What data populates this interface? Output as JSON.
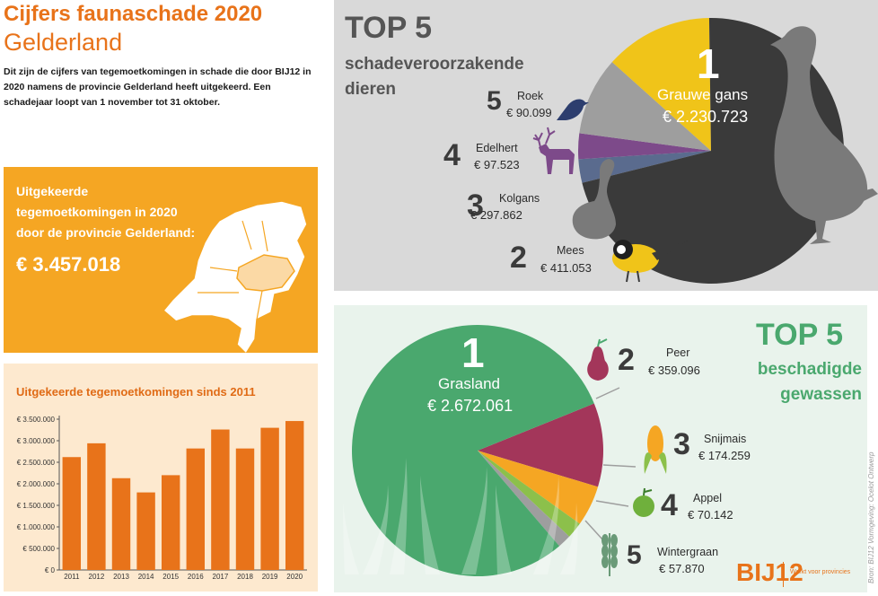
{
  "header": {
    "title_line1": "Cijfers faunaschade 2020",
    "title_line2": "Gelderland",
    "intro": "Dit zijn de cijfers van tegemoetkomingen in schade die door BIJ12 in 2020 namens de provincie Gelderland heeft uitgekeerd. Een schadejaar loopt van 1 november tot 31 oktober."
  },
  "summary": {
    "text": "Uitgekeerde tegemoetkomingen in 2020 door de provincie Gelderland:",
    "amount": "€ 3.457.018"
  },
  "colors": {
    "orange": "#f5a623",
    "orange_dark": "#e8731a",
    "bar": "#e8731a",
    "green": "#4aa86e"
  },
  "chart_data": [
    {
      "type": "bar",
      "title": "Uitgekeerde tegemoetkomingen sinds 2011",
      "categories": [
        "2011",
        "2012",
        "2013",
        "2014",
        "2015",
        "2016",
        "2017",
        "2018",
        "2019",
        "2020"
      ],
      "values": [
        2620000,
        2940000,
        2130000,
        1800000,
        2200000,
        2820000,
        3260000,
        2820000,
        3300000,
        3457018
      ],
      "ylim": [
        0,
        3500000
      ],
      "yticks": [
        0,
        500000,
        1000000,
        1500000,
        2000000,
        2500000,
        3000000,
        3500000
      ],
      "ytick_labels": [
        "€ 0",
        "€ 500.000",
        "€ 1.000.000",
        "€ 1.500.000",
        "€ 2.000.000",
        "€ 2.500.000",
        "€ 3.000.000",
        "€ 3.500.000"
      ]
    },
    {
      "type": "pie",
      "title": "TOP 5",
      "subtitle": "schadeveroorzakende dieren",
      "slices": [
        {
          "rank": "1",
          "name": "Grauwe gans",
          "value": 2230723,
          "label": "€ 2.230.723",
          "color": "#3a3a3a"
        },
        {
          "rank": "2",
          "name": "Mees",
          "value": 411053,
          "label": "€ 411.053",
          "color": "#f0c419"
        },
        {
          "rank": "3",
          "name": "Kolgans",
          "value": 297862,
          "label": "€ 297.862",
          "color": "#9e9e9e"
        },
        {
          "rank": "4",
          "name": "Edelhert",
          "value": 97523,
          "label": "€ 97.523",
          "color": "#7d4a8a"
        },
        {
          "rank": "5",
          "name": "Roek",
          "value": 90099,
          "label": "€ 90.099",
          "color": "#5a6b8e"
        }
      ]
    },
    {
      "type": "pie",
      "title": "TOP 5",
      "subtitle": "beschadigde gewassen",
      "slices": [
        {
          "rank": "1",
          "name": "Grasland",
          "value": 2672061,
          "label": "€ 2.672.061",
          "color": "#4aa86e"
        },
        {
          "rank": "2",
          "name": "Peer",
          "value": 359096,
          "label": "€ 359.096",
          "color": "#a3365a"
        },
        {
          "rank": "3",
          "name": "Snijmais",
          "value": 174259,
          "label": "€ 174.259",
          "color": "#f5a623"
        },
        {
          "rank": "4",
          "name": "Appel",
          "value": 70142,
          "label": "€ 70.142",
          "color": "#8cc04b"
        },
        {
          "rank": "5",
          "name": "Wintergraan",
          "value": 57870,
          "label": "€ 57.870",
          "color": "#9e9e9e"
        }
      ]
    }
  ],
  "footer": {
    "logo": "BIJ12",
    "logo_tagline": "Werkt voor provincies",
    "credit": "Bron: BIJ12   Vormgeving: Ocelot Ontwerp"
  }
}
